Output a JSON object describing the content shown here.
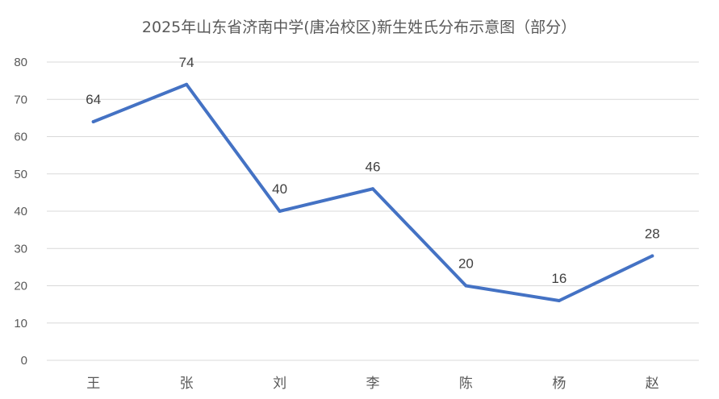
{
  "chart_data": {
    "type": "line",
    "title": "2025年山东省济南中学(唐冶校区)新生姓氏分布示意图（部分）",
    "categories": [
      "王",
      "张",
      "刘",
      "李",
      "陈",
      "杨",
      "赵"
    ],
    "series": [
      {
        "values": [
          64,
          74,
          40,
          46,
          20,
          16,
          28
        ]
      }
    ],
    "ylim": [
      0,
      80
    ],
    "yticks": [
      0,
      10,
      20,
      30,
      40,
      50,
      60,
      70,
      80
    ],
    "xlabel": "",
    "ylabel": "",
    "grid": true,
    "legend": "none",
    "data_labels": true,
    "line_color": "#4472c4",
    "grid_color": "#d9d9d9",
    "text_color": "#595959"
  }
}
